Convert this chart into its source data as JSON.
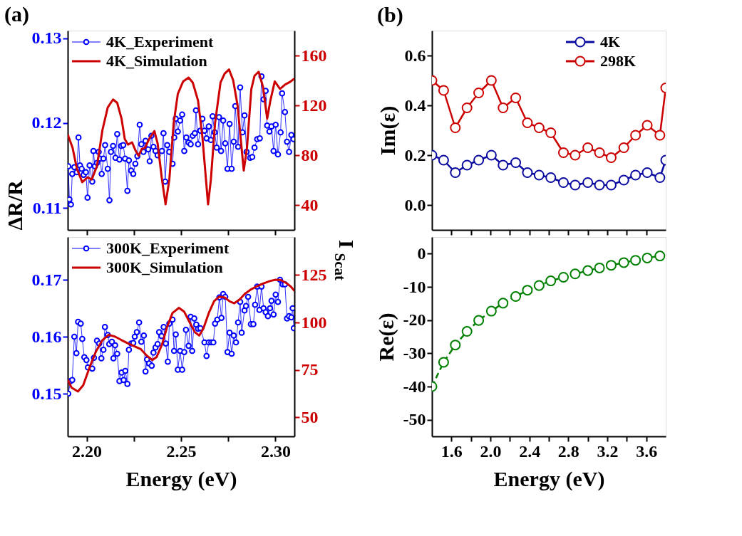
{
  "chart_data": [
    {
      "type": "line",
      "title": "(a)",
      "ylabel": "ΔR/R",
      "xlim": [
        2.19,
        2.31
      ],
      "xticks": [
        {
          "value": 2.2,
          "label": null
        },
        {
          "value": 2.225,
          "label": null
        },
        {
          "value": 2.25,
          "label": null
        },
        {
          "value": 2.275,
          "label": null
        },
        {
          "value": 2.3,
          "label": null
        }
      ],
      "ylim": [
        0.1074,
        0.1309
      ],
      "yticks": [
        0.11,
        0.12,
        0.13
      ],
      "y2lim": [
        20,
        180
      ],
      "y2ticks": [
        40,
        80,
        120,
        160
      ],
      "tick_labels": "y",
      "legend": "top left",
      "grid": false,
      "series": [
        {
          "name": "4K_Experiment",
          "color": "#0000ff",
          "marker": "circle",
          "x": [
            2.1903,
            2.1909,
            2.1917,
            2.1924,
            2.1935,
            2.1948,
            2.1957,
            2.1965,
            2.1974,
            2.1984,
            2.1996,
            2.2005,
            2.2016,
            2.203,
            2.2036,
            2.2044,
            2.2055,
            2.2064,
            2.2072,
            2.208,
            2.2089,
            2.2098,
            2.2112,
            2.2121,
            2.2129,
            2.214,
            2.2153,
            2.2162,
            2.2174,
            2.2183,
            2.2194,
            2.2204,
            2.2216,
            2.2224,
            2.2236,
            2.2247,
            2.2258,
            2.2269,
            2.2281,
            2.229,
            2.2301,
            2.2312,
            2.2326,
            2.2334,
            2.2343,
            2.2354,
            2.2365,
            2.2376,
            2.2399,
            2.2407,
            2.2416,
            2.2427,
            2.2438,
            2.2455,
            2.2464,
            2.2472,
            2.2483,
            2.2495,
            2.2506,
            2.2517,
            2.2528,
            2.254,
            2.2551,
            2.2562,
            2.2573,
            2.2579,
            2.259,
            2.2602,
            2.2613,
            2.2624,
            2.2635,
            2.2647,
            2.2658,
            2.2667,
            2.2678,
            2.2689,
            2.2701,
            2.2712,
            2.2723,
            2.2734,
            2.2746,
            2.2757,
            2.2768,
            2.2779,
            2.2787,
            2.2802,
            2.2813,
            2.2825,
            2.2836,
            2.2847,
            2.2866,
            2.2877,
            2.2889,
            2.2903,
            2.2917,
            2.2926,
            2.2937,
            2.2948,
            2.2956,
            2.2968,
            2.2979,
            2.299,
            2.3001,
            2.3013,
            2.3027,
            2.3035,
            2.305,
            2.3061,
            2.3072,
            2.3084,
            2.3095
          ],
          "values": [
            0.1149,
            0.111,
            0.1104,
            0.114,
            0.1148,
            0.1142,
            0.1183,
            0.115,
            0.1146,
            0.1139,
            0.1142,
            0.1112,
            0.115,
            0.1131,
            0.1167,
            0.1149,
            0.1153,
            0.1166,
            0.1158,
            0.114,
            0.1158,
            0.1174,
            0.1146,
            0.1109,
            0.1166,
            0.1173,
            0.1159,
            0.1187,
            0.1157,
            0.1173,
            0.1174,
            0.1158,
            0.112,
            0.1156,
            0.1144,
            0.114,
            0.1152,
            0.1161,
            0.1198,
            0.1175,
            0.1166,
            0.1179,
            0.1169,
            0.1155,
            0.1185,
            0.1172,
            0.1167,
            0.1162,
            0.1167,
            0.1188,
            0.1131,
            0.1174,
            0.1166,
            0.1152,
            0.1183,
            0.1205,
            0.119,
            0.1203,
            0.121,
            0.1167,
            0.1183,
            0.1177,
            0.1175,
            0.1185,
            0.1188,
            0.1215,
            0.1175,
            0.1191,
            0.1205,
            0.1191,
            0.1182,
            0.1196,
            0.118,
            0.1208,
            0.1189,
            0.1171,
            0.1207,
            0.1167,
            0.1203,
            0.1176,
            0.1146,
            0.1199,
            0.1146,
            0.1178,
            0.122,
            0.1172,
            0.1242,
            0.1189,
            0.1209,
            0.1166,
            0.1159,
            0.116,
            0.1171,
            0.1181,
            0.1182,
            0.1255,
            0.1228,
            0.1238,
            0.1197,
            0.119,
            0.1196,
            0.1167,
            0.1198,
            0.1163,
            0.1189,
            0.1235,
            0.1213,
            0.1178,
            0.1166,
            0.1186,
            0.1181
          ]
        },
        {
          "name": "4K_Simulation",
          "color": "#cc0000",
          "marker": "none",
          "axis": "y2",
          "x": [
            2.19,
            2.1926,
            2.1948,
            2.1977,
            2.2005,
            2.2027,
            2.2055,
            2.2084,
            2.2112,
            2.214,
            2.2162,
            2.2185,
            2.2202,
            2.2219,
            2.2241,
            2.2258,
            2.2275,
            2.2292,
            2.2309,
            2.2331,
            2.2359,
            2.2376,
            2.2399,
            2.2418,
            2.2438,
            2.2461,
            2.2483,
            2.2511,
            2.254,
            2.2562,
            2.259,
            2.2613,
            2.263,
            2.2643,
            2.2658,
            2.268,
            2.2709,
            2.2731,
            2.2754,
            2.2776,
            2.2799,
            2.2816,
            2.2832,
            2.2849,
            2.2872,
            2.2889,
            2.2911,
            2.2934,
            2.2956,
            2.2973,
            2.2996,
            2.3024,
            2.3052,
            2.3075,
            2.31
          ],
          "values": [
            96.7,
            85.8,
            69.5,
            58.3,
            62.3,
            60.5,
            71.3,
            100.3,
            118.4,
            124.7,
            122.0,
            109.3,
            93.0,
            88.5,
            90.3,
            84.0,
            79.5,
            84.9,
            85.8,
            93.0,
            99.4,
            89.4,
            60.5,
            40.5,
            60.5,
            105.7,
            129.2,
            139.2,
            142.3,
            138.3,
            123.8,
            94.8,
            64.1,
            40.5,
            60.5,
            105.7,
            138.3,
            145.5,
            148.8,
            140.1,
            120.2,
            93.0,
            67.7,
            85.8,
            132.9,
            143.7,
            147.0,
            134.7,
            109.3,
            123.8,
            139.2,
            133.2,
            136.8,
            138.6,
            141.5
          ]
        }
      ]
    },
    {
      "type": "line",
      "xlabel": "Energy (eV)",
      "y2label": "I$_{Scat}$",
      "xlim": [
        2.19,
        2.31
      ],
      "xticks": [
        {
          "value": 2.2,
          "label": "2.20"
        },
        {
          "value": 2.225,
          "label": null
        },
        {
          "value": 2.25,
          "label": "2.25"
        },
        {
          "value": 2.275,
          "label": null
        },
        {
          "value": 2.3,
          "label": "2.30"
        }
      ],
      "ylim": [
        0.1425,
        0.1775
      ],
      "yticks": [
        0.15,
        0.16,
        0.17
      ],
      "y2lim": [
        40,
        145
      ],
      "y2ticks": [
        50,
        75,
        100,
        125
      ],
      "legend": "top left",
      "grid": false,
      "series": [
        {
          "name": "300K_Experiment",
          "color": "#0000ff",
          "marker": "circle",
          "x": [
            2.1903,
            2.1915,
            2.1924,
            2.1935,
            2.1946,
            2.1955,
            2.1969,
            2.1977,
            2.1988,
            2.1999,
            2.2007,
            2.203,
            2.2039,
            2.2055,
            2.2067,
            2.2078,
            2.2089,
            2.2097,
            2.2112,
            2.212,
            2.2134,
            2.2142,
            2.2151,
            2.2162,
            2.2174,
            2.2185,
            2.2196,
            2.2205,
            2.2216,
            2.2224,
            2.2236,
            2.2247,
            2.2255,
            2.2266,
            2.2278,
            2.229,
            2.2303,
            2.2312,
            2.232,
            2.2331,
            2.2345,
            2.2354,
            2.2365,
            2.2376,
            2.2384,
            2.2397,
            2.2408,
            2.2419,
            2.243,
            2.2438,
            2.2455,
            2.2463,
            2.2472,
            2.2483,
            2.2495,
            2.2506,
            2.2517,
            2.2526,
            2.254,
            2.2551,
            2.2559,
            2.257,
            2.2581,
            2.259,
            2.2602,
            2.2624,
            2.2635,
            2.2647,
            2.266,
            2.2671,
            2.268,
            2.2692,
            2.2703,
            2.2714,
            2.2723,
            2.2734,
            2.2746,
            2.2757,
            2.2768,
            2.2779,
            2.2791,
            2.2802,
            2.2813,
            2.2821,
            2.2836,
            2.2844,
            2.2855,
            2.287,
            2.2883,
            2.2892,
            2.2903,
            2.2915,
            2.2926,
            2.2937,
            2.2948,
            2.296,
            2.2971,
            2.2979,
            2.299,
            2.3001,
            2.3013,
            2.3024,
            2.3038,
            2.305,
            2.3061,
            2.3072,
            2.3084,
            2.3091,
            2.3097
          ],
          "values": [
            0.15,
            0.1522,
            0.1524,
            0.16,
            0.1571,
            0.1626,
            0.1623,
            0.1596,
            0.1564,
            0.1559,
            0.1546,
            0.1544,
            0.1563,
            0.1593,
            0.1588,
            0.1562,
            0.1577,
            0.1617,
            0.1603,
            0.1587,
            0.1591,
            0.1562,
            0.1585,
            0.157,
            0.1522,
            0.1537,
            0.1524,
            0.154,
            0.1517,
            0.1577,
            0.1588,
            0.1589,
            0.16,
            0.1608,
            0.1625,
            0.1591,
            0.1602,
            0.1539,
            0.156,
            0.1553,
            0.1549,
            0.1572,
            0.1581,
            0.1587,
            0.1608,
            0.1601,
            0.1617,
            0.1588,
            0.1556,
            0.1623,
            0.163,
            0.1575,
            0.1604,
            0.1542,
            0.1575,
            0.1542,
            0.1573,
            0.1612,
            0.1584,
            0.1635,
            0.1575,
            0.1632,
            0.1621,
            0.1614,
            0.1615,
            0.159,
            0.1566,
            0.159,
            0.159,
            0.159,
            0.1623,
            0.163,
            0.1669,
            0.1633,
            0.1675,
            0.167,
            0.1573,
            0.1607,
            0.157,
            0.1602,
            0.159,
            0.1625,
            0.1661,
            0.1607,
            0.1646,
            0.1654,
            0.167,
            0.1622,
            0.1622,
            0.1656,
            0.1688,
            0.1647,
            0.1688,
            0.165,
            0.1643,
            0.1636,
            0.165,
            0.1663,
            0.1639,
            0.1674,
            0.1661,
            0.17,
            0.1692,
            0.1692,
            0.1632,
            0.1636,
            0.1634,
            0.165,
            0.1615
          ]
        },
        {
          "name": "300K_Simulation",
          "color": "#cc0000",
          "marker": "none",
          "axis": "y2",
          "x": [
            2.19,
            2.192,
            2.1954,
            2.1982,
            2.2016,
            2.205,
            2.2084,
            2.2117,
            2.2151,
            2.2185,
            2.2219,
            2.2252,
            2.2286,
            2.232,
            2.2348,
            2.2371,
            2.2399,
            2.2427,
            2.2455,
            2.2489,
            2.2517,
            2.2545,
            2.2573,
            2.2596,
            2.2618,
            2.2647,
            2.2675,
            2.2703,
            2.2731,
            2.2759,
            2.2782,
            2.281,
            2.2838,
            2.2872,
            2.2906,
            2.2939,
            2.2973,
            2.3001,
            2.3029,
            2.3058,
            2.308,
            2.31
          ],
          "values": [
            69.9,
            65.7,
            63.6,
            66.9,
            76.4,
            84.8,
            90.7,
            93.5,
            92.5,
            90.7,
            89.0,
            87.5,
            86.0,
            82.4,
            80.2,
            81.8,
            88.3,
            97.9,
            105.0,
            107.7,
            105.6,
            100.2,
            94.9,
            93.1,
            96.7,
            105.0,
            111.2,
            113.6,
            113.1,
            111.0,
            110.1,
            112.1,
            115.1,
            117.5,
            119.3,
            120.7,
            121.9,
            122.5,
            122.3,
            120.7,
            119.0,
            116.7
          ]
        }
      ]
    },
    {
      "type": "line",
      "title": "(b)",
      "ylabel": "Im(ε)",
      "xlim": [
        1.4,
        3.8
      ],
      "xticks": [
        {
          "value": 1.6,
          "label": null
        },
        {
          "value": 1.8,
          "label": null
        },
        {
          "value": 2.0,
          "label": null
        },
        {
          "value": 2.2,
          "label": null
        },
        {
          "value": 2.4,
          "label": null
        },
        {
          "value": 2.6,
          "label": null
        },
        {
          "value": 2.8,
          "label": null
        },
        {
          "value": 3.0,
          "label": null
        },
        {
          "value": 3.2,
          "label": null
        },
        {
          "value": 3.4,
          "label": null
        },
        {
          "value": 3.6,
          "label": null
        }
      ],
      "ylim": [
        -0.1,
        0.7
      ],
      "yticks": [
        {
          "value": 0,
          "label": "0.0"
        },
        0.2,
        0.4,
        0.6
      ],
      "tick_labels": "y",
      "legend": "top right",
      "grid": false,
      "x": [
        1.4,
        1.52,
        1.64,
        1.76,
        1.88,
        2.01,
        2.13,
        2.26,
        2.38,
        2.5,
        2.62,
        2.75,
        2.87,
        3.0,
        3.12,
        3.24,
        3.37,
        3.49,
        3.61,
        3.74,
        3.8
      ],
      "series": [
        {
          "name": "4K",
          "color": "#0a0aa0",
          "marker": "circle",
          "values": [
            0.2,
            0.18,
            0.13,
            0.16,
            0.18,
            0.2,
            0.16,
            0.17,
            0.13,
            0.12,
            0.11,
            0.09,
            0.08,
            0.09,
            0.08,
            0.08,
            0.1,
            0.12,
            0.13,
            0.11,
            0.18
          ]
        },
        {
          "name": "298K",
          "color": "#cc0000",
          "marker": "circle",
          "values": [
            0.5,
            0.46,
            0.31,
            0.39,
            0.45,
            0.5,
            0.39,
            0.43,
            0.33,
            0.31,
            0.29,
            0.21,
            0.2,
            0.23,
            0.21,
            0.19,
            0.23,
            0.28,
            0.32,
            0.28,
            0.47
          ]
        }
      ]
    },
    {
      "type": "line",
      "xlabel": "Energy (eV)",
      "ylabel": "Re(ε)",
      "xlim": [
        1.4,
        3.8
      ],
      "xticks": [
        1.6,
        {
          "value": 1.8,
          "label": null
        },
        {
          "value": 2.0,
          "label": "2.0"
        },
        {
          "value": 2.2,
          "label": null
        },
        2.4,
        {
          "value": 2.6,
          "label": null
        },
        2.8,
        {
          "value": 3.0,
          "label": null
        },
        3.2,
        {
          "value": 3.4,
          "label": null
        },
        3.6
      ],
      "ylim": [
        -55,
        5
      ],
      "yticks": [
        -50,
        -40,
        -30,
        -20,
        -10,
        0
      ],
      "grid": false,
      "x": [
        1.4,
        1.52,
        1.64,
        1.76,
        1.88,
        2.01,
        2.13,
        2.26,
        2.38,
        2.5,
        2.62,
        2.75,
        2.87,
        3.0,
        3.12,
        3.24,
        3.37,
        3.49,
        3.61,
        3.74
      ],
      "series": [
        {
          "color": "#008000",
          "marker": "circle",
          "line_style": "dashed",
          "values": [
            -40.0,
            -32.7,
            -27.5,
            -23.4,
            -20.1,
            -17.3,
            -14.9,
            -12.9,
            -11.0,
            -9.6,
            -8.2,
            -7.1,
            -6.1,
            -5.1,
            -4.3,
            -3.5,
            -2.7,
            -2.0,
            -1.3,
            -0.7
          ]
        }
      ]
    }
  ]
}
